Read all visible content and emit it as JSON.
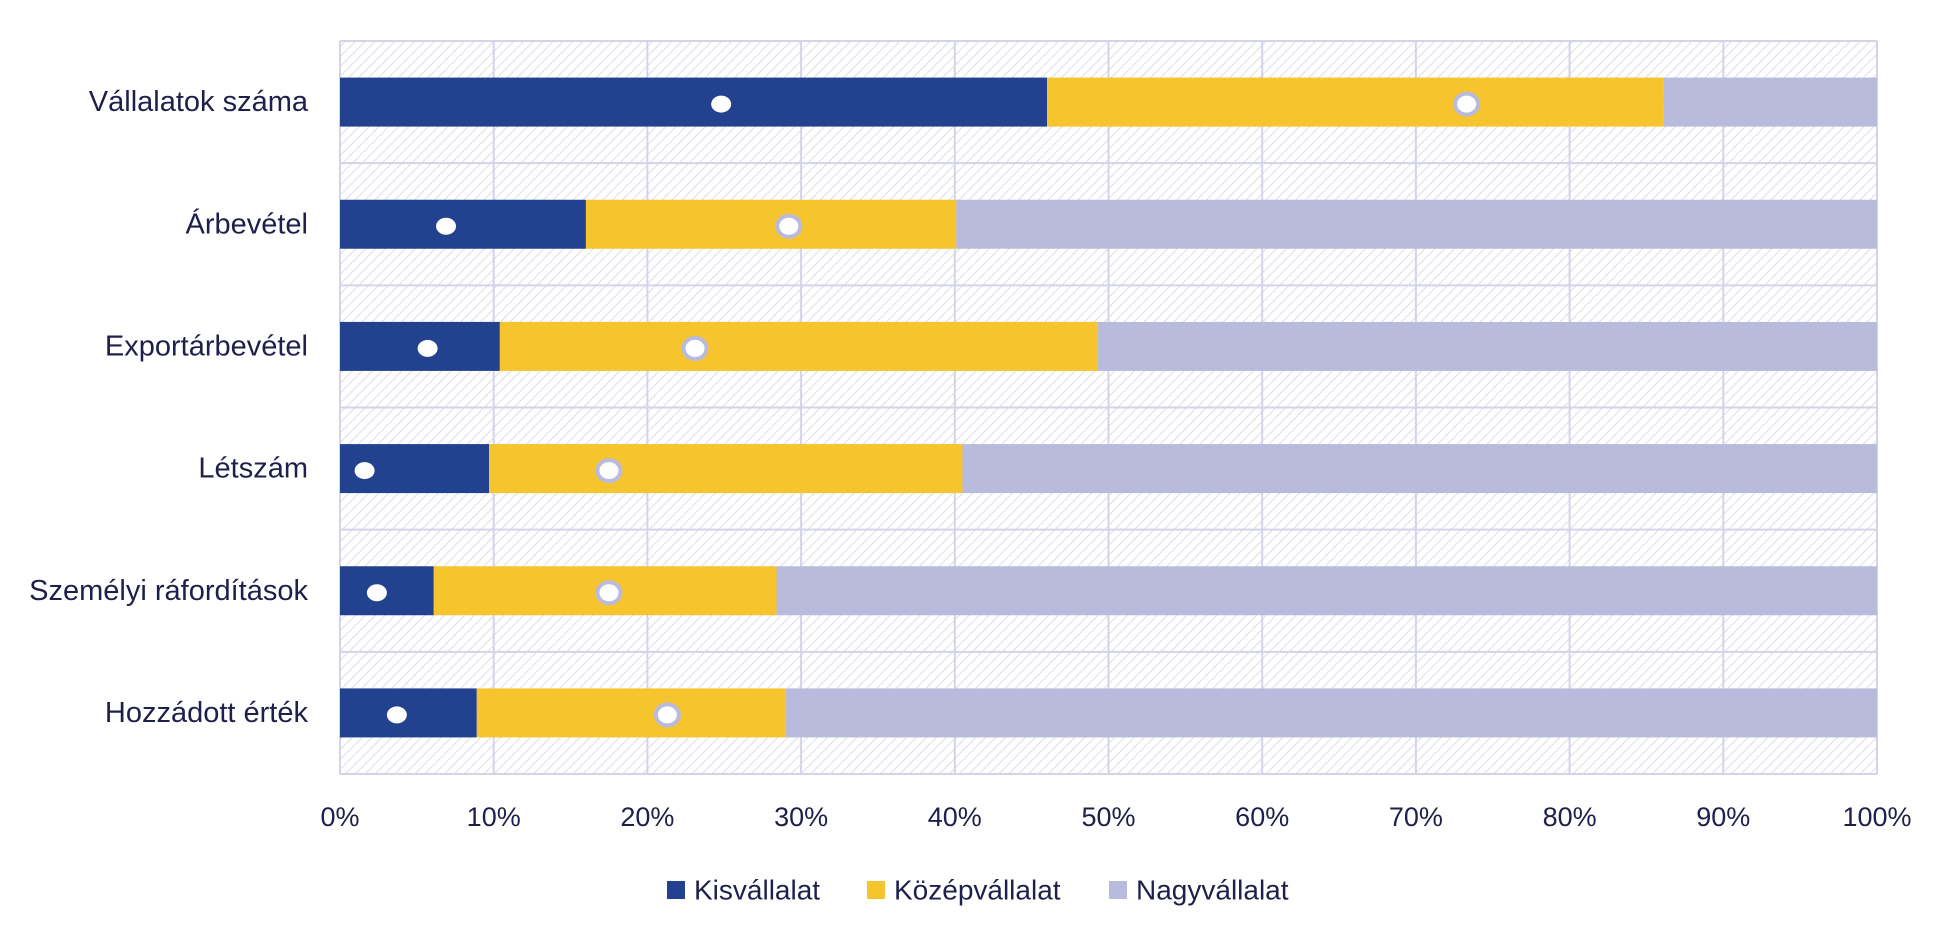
{
  "chart_data": {
    "type": "bar",
    "orientation": "horizontal",
    "stacked": true,
    "percent": true,
    "categories": [
      "Vállalatok száma",
      "Árbevétel",
      "Exportárbevétel",
      "Létszám",
      "Személyi ráfordítások",
      "Hozzádott érték"
    ],
    "series": [
      {
        "name": "Kisvállalat",
        "color": "#22418f",
        "values": [
          46,
          16,
          10.4,
          9.7,
          6.1,
          8.9
        ]
      },
      {
        "name": "Középvállalat",
        "color": "#f6c42c",
        "values": [
          40.1,
          24.1,
          38.9,
          30.8,
          22.3,
          20.1
        ]
      },
      {
        "name": "Nagyvállalat",
        "color": "#b9bbdc",
        "values": [
          13.9,
          59.9,
          50.7,
          59.5,
          71.6,
          71
        ]
      }
    ],
    "markers": [
      {
        "series": "Kisvállalat",
        "style": "filled-dot",
        "values": [
          24.8,
          6.9,
          5.7,
          1.6,
          2.4,
          3.7
        ]
      },
      {
        "series": "Középvállalat",
        "style": "ring-dot",
        "values": [
          73.3,
          29.2,
          23.1,
          17.5,
          17.5,
          21.3
        ]
      }
    ],
    "xlim": [
      0,
      100
    ],
    "xticks": [
      "0%",
      "10%",
      "20%",
      "30%",
      "40%",
      "50%",
      "60%",
      "70%",
      "80%",
      "90%",
      "100%"
    ],
    "grid": true,
    "legend_position": "bottom",
    "title": "",
    "xlabel": "",
    "ylabel": ""
  },
  "colors": {
    "grid": "#d3d3ea",
    "hatch": "#dcdcec",
    "text": "#1f1f4d",
    "ring": "#b9bbdc"
  }
}
